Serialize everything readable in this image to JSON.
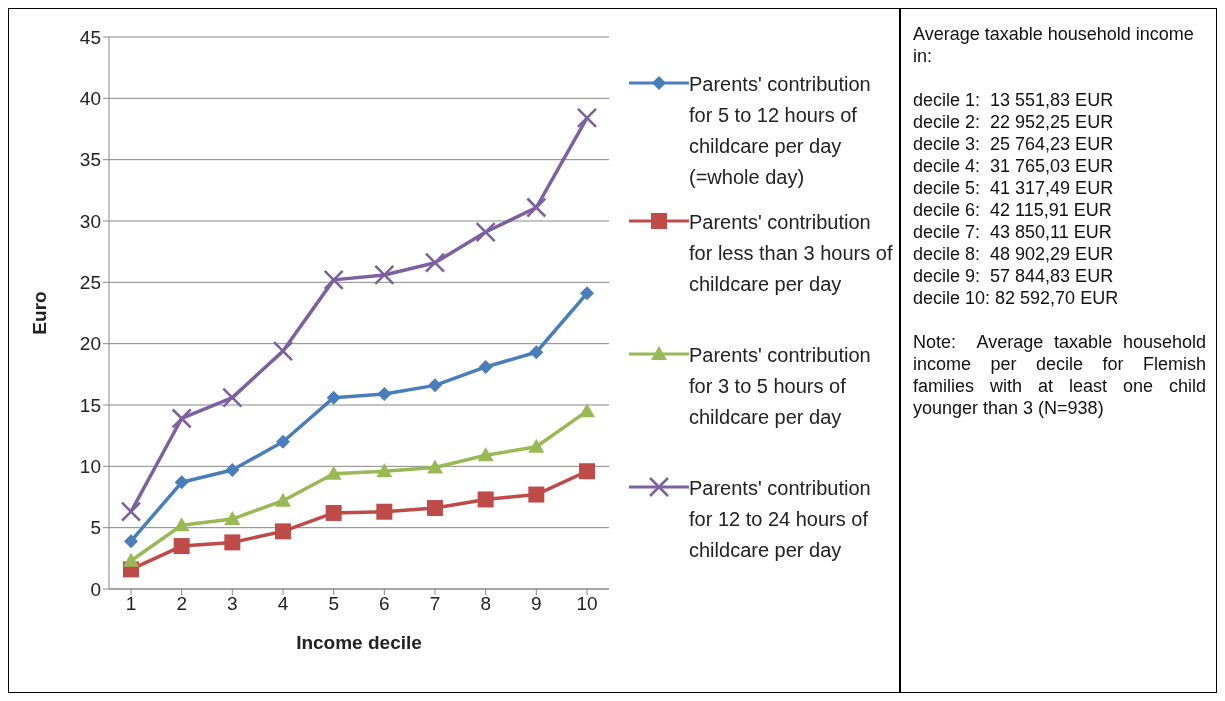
{
  "chart_data": {
    "type": "line",
    "xlabel": "Income decile",
    "ylabel": "Euro",
    "categories": [
      "1",
      "2",
      "3",
      "4",
      "5",
      "6",
      "7",
      "8",
      "9",
      "10"
    ],
    "series": [
      {
        "name": "Parents' contribution for 5 to 12 hours of childcare per day (=whole day)",
        "color": "#4a7ebb",
        "marker": "diamond",
        "values": [
          3.9,
          8.7,
          9.7,
          12.0,
          15.6,
          15.9,
          16.6,
          18.1,
          19.3,
          24.1
        ]
      },
      {
        "name": "Parents' contribution for less than 3 hours of childcare per day",
        "color": "#be4b48",
        "marker": "square",
        "values": [
          1.6,
          3.5,
          3.8,
          4.7,
          6.2,
          6.3,
          6.6,
          7.3,
          7.7,
          9.6
        ]
      },
      {
        "name": "Parents' contribution for 3 to 5 hours of childcare per day",
        "color": "#98b954",
        "marker": "triangle",
        "values": [
          2.3,
          5.2,
          5.7,
          7.2,
          9.4,
          9.6,
          9.9,
          10.9,
          11.6,
          14.5
        ]
      },
      {
        "name": "Parents' contribution for 12 to 24 hours of childcare per day",
        "color": "#7d60a0",
        "marker": "cross",
        "values": [
          6.3,
          13.9,
          15.6,
          19.4,
          25.2,
          25.6,
          26.6,
          29.1,
          31.1,
          38.4
        ]
      }
    ],
    "ylim": [
      0,
      45
    ],
    "yticks": [
      0,
      5,
      10,
      15,
      20,
      25,
      30,
      35,
      40,
      45
    ],
    "grid": "y",
    "legend": "right",
    "line_style": "solid",
    "annotations": [
      "Average taxable household income in:",
      "decile 1:  13 551,83 EUR",
      "decile 2:  22 952,25 EUR",
      "decile 3:  25 764,23 EUR",
      "decile 4:  31 765,03 EUR",
      "decile 5:  41 317,49 EUR",
      "decile 6:  42 115,91 EUR",
      "decile 7:  43 850,11 EUR",
      "decile 8:  48 902,29 EUR",
      "decile 9:  57 844,83 EUR",
      "decile 10: 82 592,70 EUR",
      "Note:  Average taxable household income per decile for Flemish families with at least one child younger than 3 (N=938)"
    ]
  }
}
